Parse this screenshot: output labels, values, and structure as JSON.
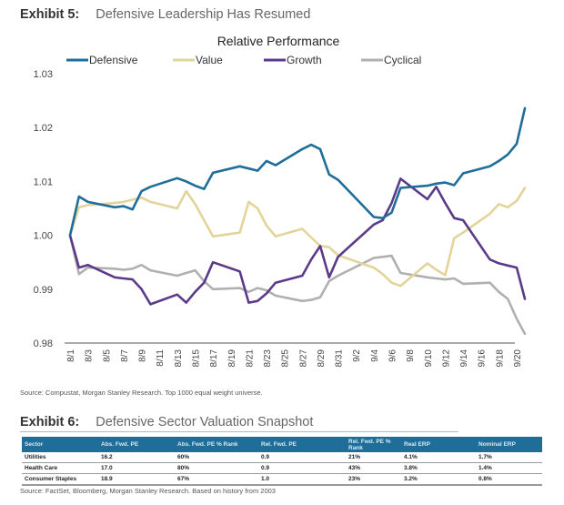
{
  "exhibit5": {
    "number": "Exhibit 5:",
    "title": "Defensive Leadership Has Resumed",
    "source": "Source: Compustat, Morgan Stanley Research. Top 1000 equal weight universe."
  },
  "exhibit6": {
    "number": "Exhibit 6:",
    "title": "Defensive Sector Valuation Snapshot",
    "source": "Source: FactSet, Bloomberg, Morgan Stanley Research. Based on history from 2003",
    "columns": [
      "Sector",
      "Abs. Fwd. PE",
      "Abs. Fwd. PE % Rank",
      "Rel. Fwd. PE",
      "Rel. Fwd. PE % Rank",
      "Real ERP",
      "Nominal ERP"
    ],
    "rows": [
      [
        "Utilities",
        "16.2",
        "60%",
        "0.9",
        "21%",
        "4.1%",
        "1.7%"
      ],
      [
        "Health Care",
        "17.0",
        "80%",
        "0.9",
        "43%",
        "3.8%",
        "1.4%"
      ],
      [
        "Consumer Staples",
        "18.9",
        "67%",
        "1.0",
        "23%",
        "3.2%",
        "0.8%"
      ]
    ]
  },
  "chart_data": {
    "type": "line",
    "title": "Relative Performance",
    "xlabel": "",
    "ylabel": "",
    "ylim": [
      0.98,
      1.03
    ],
    "yticks": [
      "1.03",
      "1.02",
      "1.01",
      "1.00",
      "0.99",
      "0.98"
    ],
    "ytick_values": [
      1.03,
      1.02,
      1.01,
      1.0,
      0.99,
      0.98
    ],
    "xtick_labels": [
      "8/1",
      "8/3",
      "8/5",
      "8/7",
      "8/9",
      "8/11",
      "8/13",
      "8/15",
      "8/17",
      "8/19",
      "8/21",
      "8/23",
      "8/25",
      "8/27",
      "8/29",
      "8/31",
      "9/2",
      "9/4",
      "9/6",
      "9/8",
      "9/10",
      "9/12",
      "9/14",
      "9/16",
      "9/18",
      "9/20"
    ],
    "xtick_day_offsets": [
      0,
      2,
      4,
      6,
      8,
      10,
      12,
      14,
      16,
      18,
      20,
      22,
      24,
      26,
      28,
      30,
      32,
      34,
      36,
      38,
      40,
      42,
      44,
      46,
      48,
      50
    ],
    "grid": false,
    "legend_position": "top",
    "x_day_offsets": [
      0,
      1,
      2,
      5,
      6,
      7,
      8,
      9,
      12,
      13,
      14,
      15,
      16,
      19,
      20,
      21,
      22,
      23,
      26,
      27,
      28,
      29,
      30,
      34,
      35,
      36,
      37,
      40,
      41,
      42,
      43,
      44,
      47,
      48,
      49,
      50,
      51
    ],
    "x_dates": [
      "8/1",
      "8/2",
      "8/3",
      "8/6",
      "8/7",
      "8/8",
      "8/9",
      "8/10",
      "8/13",
      "8/14",
      "8/15",
      "8/16",
      "8/17",
      "8/20",
      "8/21",
      "8/22",
      "8/23",
      "8/24",
      "8/27",
      "8/28",
      "8/29",
      "8/30",
      "8/31",
      "9/4",
      "9/5",
      "9/6",
      "9/7",
      "9/10",
      "9/11",
      "9/12",
      "9/13",
      "9/14",
      "9/17",
      "9/18",
      "9/19",
      "9/20",
      "9/21"
    ],
    "series": [
      {
        "name": "Defensive",
        "color": "#1f6d99",
        "values": [
          1.0,
          1.0072,
          1.0062,
          1.0052,
          1.0054,
          1.0048,
          1.0082,
          1.009,
          1.0106,
          1.01,
          1.0092,
          1.0086,
          1.0116,
          1.0128,
          1.0124,
          1.012,
          1.0138,
          1.013,
          1.016,
          1.0168,
          1.016,
          1.0113,
          1.0103,
          1.0034,
          1.0032,
          1.0042,
          1.0088,
          1.0092,
          1.0096,
          1.0098,
          1.0093,
          1.0115,
          1.0128,
          1.0138,
          1.015,
          1.017,
          1.0236
        ]
      },
      {
        "name": "Value",
        "color": "#e2d49a",
        "values": [
          1.0,
          1.0052,
          1.0056,
          1.006,
          1.0062,
          1.0066,
          1.007,
          1.0062,
          1.005,
          1.0082,
          1.0058,
          1.0028,
          0.9998,
          1.0005,
          1.0062,
          1.005,
          1.0018,
          0.9998,
          1.0012,
          0.9996,
          0.998,
          0.9978,
          0.9963,
          0.994,
          0.9928,
          0.9912,
          0.9906,
          0.9948,
          0.9936,
          0.9926,
          0.9995,
          1.0005,
          1.004,
          1.0058,
          1.0052,
          1.0064,
          1.0088
        ]
      },
      {
        "name": "Growth",
        "color": "#5b3a8a",
        "values": [
          1.0,
          0.994,
          0.9945,
          0.9922,
          0.992,
          0.9918,
          0.99,
          0.9872,
          0.989,
          0.9875,
          0.9895,
          0.9912,
          0.995,
          0.9933,
          0.9875,
          0.9878,
          0.9892,
          0.9912,
          0.9925,
          0.9955,
          0.998,
          0.9922,
          0.996,
          1.002,
          1.0028,
          1.006,
          1.0105,
          1.0067,
          1.009,
          1.006,
          1.0032,
          1.0028,
          0.9955,
          0.9948,
          0.9944,
          0.994,
          0.9882
        ]
      },
      {
        "name": "Cyclical",
        "color": "#b0b0b0",
        "values": [
          1.0,
          0.9928,
          0.994,
          0.9938,
          0.9936,
          0.9938,
          0.9945,
          0.9935,
          0.9925,
          0.993,
          0.9935,
          0.9915,
          0.99,
          0.9902,
          0.9895,
          0.9902,
          0.9898,
          0.9888,
          0.9878,
          0.988,
          0.9885,
          0.9915,
          0.9925,
          0.9958,
          0.996,
          0.9962,
          0.993,
          0.9922,
          0.992,
          0.9918,
          0.992,
          0.991,
          0.9912,
          0.9895,
          0.9882,
          0.9845,
          0.9817
        ]
      }
    ]
  }
}
